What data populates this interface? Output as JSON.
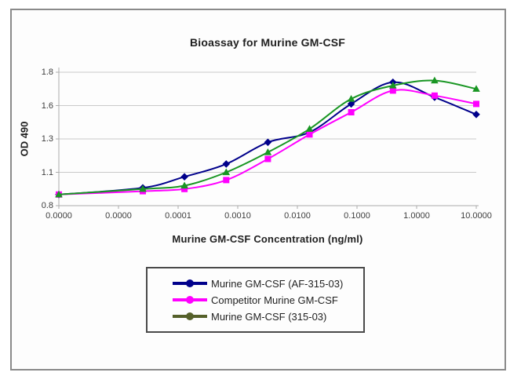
{
  "colors": {
    "frame_border": "#8a8a8a",
    "legend_border": "#4a4a4a",
    "grid": "#c9c9c9",
    "axis": "#ababab",
    "title_text": "#1f1f1f",
    "tick_text": "#3d3d3d",
    "background": "#fdfdfd"
  },
  "chart_data": {
    "type": "line",
    "line_style": "smooth",
    "title": "Bioassay for Murine GM-CSF",
    "xlabel": "Murine GM-CSF Concentration (ng/ml)",
    "ylabel": "OD 490",
    "x_scale": "log",
    "x_log_range": [
      -6,
      1
    ],
    "grid": "horizontal",
    "legend_position": "bottom",
    "ylim": [
      0.8,
      1.8
    ],
    "y_tick_values": [
      0.8,
      1.1,
      1.3,
      1.6,
      1.8
    ],
    "y_tick_labels": [
      "0.8",
      "1.1",
      "1.3",
      "1.6",
      "1.8"
    ],
    "x_tick_labels": [
      "0.0000",
      "0.0000",
      "0.0001",
      "0.0010",
      "0.0100",
      "0.1000",
      "1.0000",
      "10.0000"
    ],
    "x": [
      0,
      2.56e-05,
      0.000128,
      0.00064,
      0.0032,
      0.016,
      0.08,
      0.4,
      2,
      10
    ],
    "series": [
      {
        "name": "Murine GM-CSF (AF-315-03)",
        "color": "#00008b",
        "legend_color": "#00008b",
        "marker": "diamond",
        "values": [
          0.9,
          0.96,
          1.06,
          1.15,
          1.28,
          1.36,
          1.61,
          1.74,
          1.65,
          1.52
        ]
      },
      {
        "name": "Competitor Murine GM-CSF",
        "color": "#ff00ff",
        "legend_color": "#ff00ff",
        "marker": "square",
        "values": [
          0.9,
          0.93,
          0.95,
          1.03,
          1.18,
          1.34,
          1.54,
          1.69,
          1.66,
          1.61
        ]
      },
      {
        "name": "Murine GM-CSF (315-03)",
        "color": "#199623",
        "legend_color": "#55602a",
        "marker": "triangle",
        "values": [
          0.9,
          0.95,
          0.98,
          1.1,
          1.22,
          1.39,
          1.64,
          1.72,
          1.75,
          1.7
        ]
      }
    ]
  }
}
